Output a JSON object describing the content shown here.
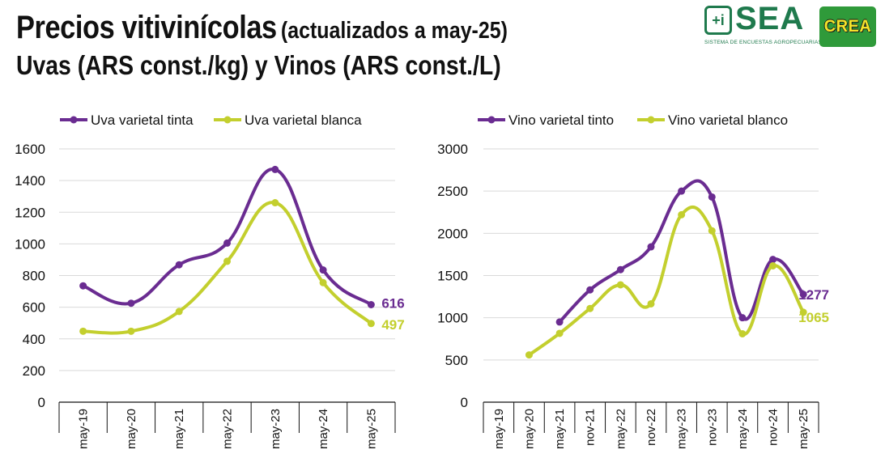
{
  "header": {
    "title": "Precios vitivinícolas",
    "title_note": "(actualizados a may-25)",
    "subtitle": "Uvas (ARS const./kg) y Vinos (ARS const./L)"
  },
  "logos": {
    "sea": {
      "badge": "+i",
      "name": "SEA",
      "tagline": "SISTEMA DE ENCUESTAS AGROPECUARIAS"
    },
    "crea": {
      "name": "CREA"
    }
  },
  "colors": {
    "purple": "#6a2c91",
    "green": "#c3cf2e",
    "grid": "#d9d9d9",
    "axis": "#111111"
  },
  "chart_data": [
    {
      "type": "line",
      "categories": [
        "may-19",
        "may-20",
        "may-21",
        "may-22",
        "may-23",
        "may-24",
        "may-25"
      ],
      "ylim": [
        0,
        1600
      ],
      "yticks": [
        0,
        200,
        400,
        600,
        800,
        1000,
        1200,
        1400,
        1600
      ],
      "grid": true,
      "legend": "top-left",
      "series": [
        {
          "name": "Uva varietal tinta",
          "color": "#6a2c91",
          "values": [
            735,
            625,
            868,
            1005,
            1470,
            835,
            616
          ],
          "end_label": "616"
        },
        {
          "name": "Uva varietal blanca",
          "color": "#c3cf2e",
          "values": [
            448,
            448,
            573,
            890,
            1260,
            755,
            497
          ],
          "end_label": "497"
        }
      ]
    },
    {
      "type": "line",
      "categories": [
        "may-19",
        "may-20",
        "may-21",
        "nov-21",
        "may-22",
        "nov-22",
        "may-23",
        "nov-23",
        "may-24",
        "nov-24",
        "may-25"
      ],
      "ylim": [
        0,
        3000
      ],
      "yticks": [
        0,
        500,
        1000,
        1500,
        2000,
        2500,
        3000
      ],
      "grid": true,
      "legend": "top-left",
      "series": [
        {
          "name": "Vino varietal tinto",
          "color": "#6a2c91",
          "values": [
            null,
            null,
            950,
            1330,
            1570,
            1840,
            2500,
            2430,
            1000,
            1690,
            1277
          ],
          "end_label": "1277"
        },
        {
          "name": "Vino varietal blanco",
          "color": "#c3cf2e",
          "values": [
            null,
            560,
            815,
            1110,
            1390,
            1165,
            2220,
            2030,
            810,
            1615,
            1065
          ],
          "end_label": "1065"
        }
      ]
    }
  ]
}
